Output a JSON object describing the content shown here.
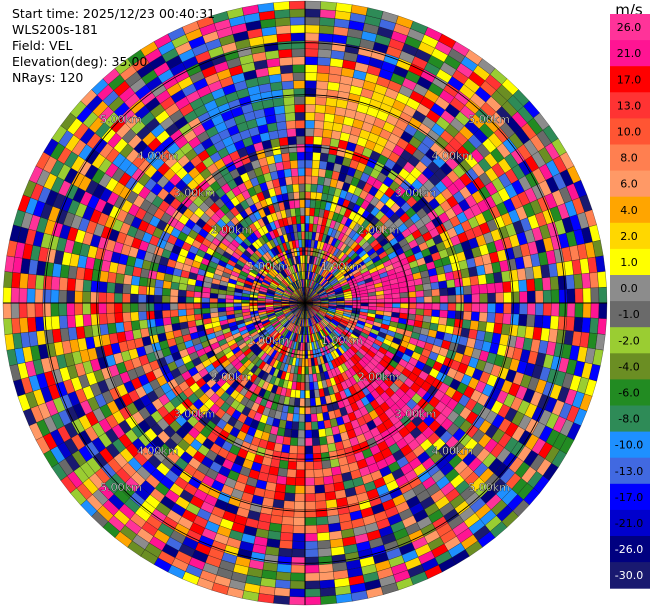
{
  "info": {
    "start_time": "Start time: 2025/12/23 00:40:31",
    "station": "WLS200s-181",
    "field": "Field: VEL",
    "elevation": "Elevation(deg): 35.00",
    "nrays": "NRays: 120"
  },
  "chart_data": {
    "type": "heatmap",
    "projection": "polar-ppi",
    "field": "VEL",
    "nrays": 120,
    "range_rings": [
      "1.00km",
      "2.00km",
      "3.00km",
      "4.00km",
      "5.00km"
    ],
    "max_range_km": 5.8,
    "colorbar": {
      "unit": "m/s",
      "levels": [
        "26.0",
        "21.0",
        "17.0",
        "13.0",
        "10.0",
        "8.0",
        "6.0",
        "4.0",
        "2.0",
        "1.0",
        "0.0",
        "-1.0",
        "-2.0",
        "-4.0",
        "-6.0",
        "-8.0",
        "-10.0",
        "-13.0",
        "-17.0",
        "-21.0",
        "-26.0",
        "-30.0"
      ],
      "colors": [
        "#ff3399",
        "#ff1493",
        "#ff0000",
        "#ff3333",
        "#ff5533",
        "#ff7f50",
        "#ff9966",
        "#ffa500",
        "#ffd700",
        "#ffff00",
        "#8c8c8c",
        "#6a6a6a",
        "#9acd32",
        "#6b8e23",
        "#228b22",
        "#2e8b57",
        "#1e90ff",
        "#4169e1",
        "#0000ff",
        "#0000cd",
        "#000080",
        "#191970"
      ]
    }
  }
}
